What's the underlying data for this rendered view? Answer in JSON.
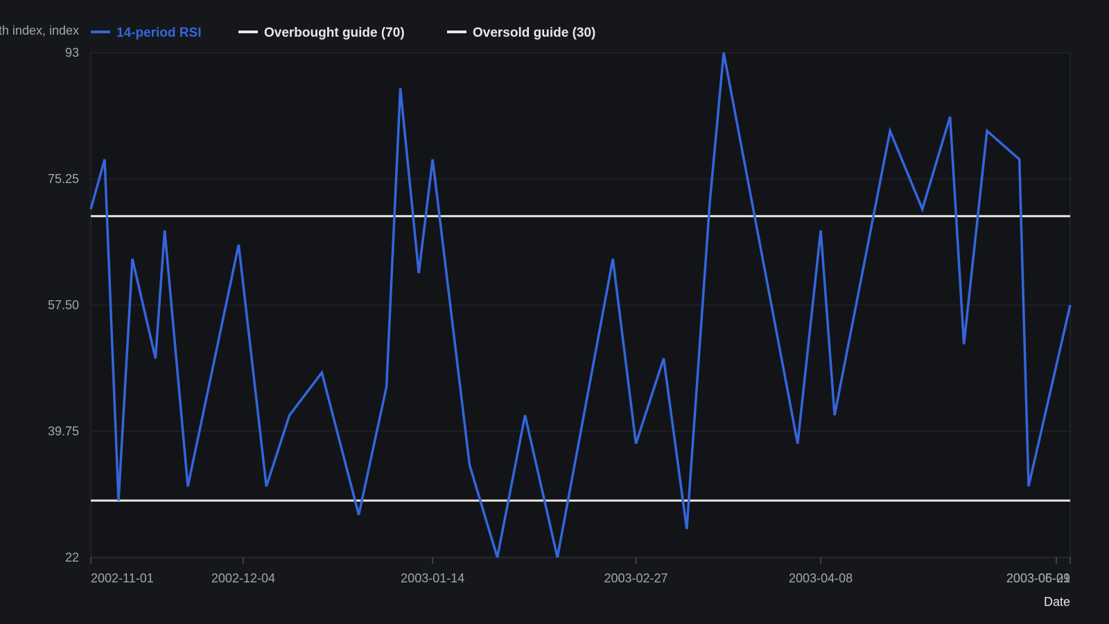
{
  "chart_data": {
    "type": "line",
    "xlabel": "Date",
    "ylabel": "Relative strength index, index",
    "ylim": [
      22,
      93
    ],
    "y_ticks": [
      "93",
      "75.25",
      "57.50",
      "39.75",
      "22"
    ],
    "x_range": [
      "2002-11-01",
      "2003-06-01"
    ],
    "x_ticks": [
      "2002-11-01",
      "2002-12-04",
      "2003-01-14",
      "2003-02-27",
      "2003-04-08",
      "2003-05-29",
      "2003-06-01"
    ],
    "grid": true,
    "legend_position": "top",
    "series": [
      {
        "name": "14-period RSI",
        "color": "#3466dc",
        "points": [
          [
            "2002-11-01",
            71
          ],
          [
            "2002-11-04",
            78
          ],
          [
            "2002-11-07",
            30
          ],
          [
            "2002-11-10",
            64
          ],
          [
            "2002-11-15",
            50
          ],
          [
            "2002-11-17",
            68
          ],
          [
            "2002-11-22",
            32
          ],
          [
            "2002-12-03",
            66
          ],
          [
            "2002-12-09",
            32
          ],
          [
            "2002-12-14",
            42
          ],
          [
            "2002-12-21",
            48
          ],
          [
            "2002-12-29",
            28
          ],
          [
            "2003-01-04",
            46
          ],
          [
            "2003-01-07",
            88
          ],
          [
            "2003-01-11",
            62
          ],
          [
            "2003-01-14",
            78
          ],
          [
            "2003-01-22",
            35
          ],
          [
            "2003-01-28",
            22
          ],
          [
            "2003-02-03",
            42
          ],
          [
            "2003-02-10",
            22
          ],
          [
            "2003-02-22",
            64
          ],
          [
            "2003-02-27",
            38
          ],
          [
            "2003-03-05",
            50
          ],
          [
            "2003-03-10",
            26
          ],
          [
            "2003-03-15",
            72
          ],
          [
            "2003-03-18",
            93
          ],
          [
            "2003-04-03",
            38
          ],
          [
            "2003-04-08",
            68
          ],
          [
            "2003-04-11",
            42
          ],
          [
            "2003-04-23",
            82
          ],
          [
            "2003-04-30",
            71
          ],
          [
            "2003-05-06",
            84
          ],
          [
            "2003-05-09",
            52
          ],
          [
            "2003-05-14",
            82
          ],
          [
            "2003-05-21",
            78
          ],
          [
            "2003-05-23",
            32
          ],
          [
            "2003-06-01",
            57.5
          ]
        ]
      },
      {
        "name": "Overbought guide (70)",
        "color": "#ece7e1",
        "points": [
          [
            "2002-11-01",
            70
          ],
          [
            "2003-06-01",
            70
          ]
        ]
      },
      {
        "name": "Oversold guide (30)",
        "color": "#ece7e1",
        "points": [
          [
            "2002-11-01",
            30
          ],
          [
            "2003-06-01",
            30
          ]
        ]
      }
    ]
  }
}
